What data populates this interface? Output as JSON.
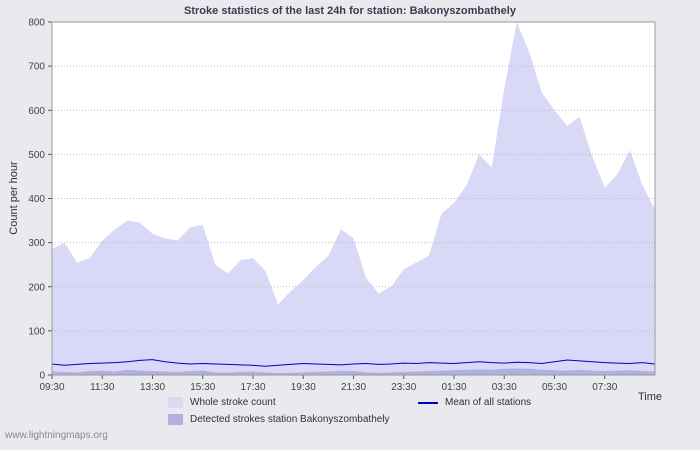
{
  "page": {
    "background": "#e9e9ee"
  },
  "footer": {
    "site": "www.lightningmaps.org"
  },
  "chart_data": {
    "type": "area",
    "title": "Stroke statistics of the last 24h for station: Bakonyszombathely",
    "xlabel": "Time",
    "ylabel": "Count per hour",
    "ylim": [
      0,
      800
    ],
    "y_ticks": [
      0,
      100,
      200,
      300,
      400,
      500,
      600,
      700,
      800
    ],
    "x_span": 24,
    "grid": "horizontal-dotted",
    "legend_position": "bottom",
    "x_ticks": [
      {
        "pos": 0,
        "label": "09:30"
      },
      {
        "pos": 2,
        "label": "11:30"
      },
      {
        "pos": 4,
        "label": "13:30"
      },
      {
        "pos": 6,
        "label": "15:30"
      },
      {
        "pos": 8,
        "label": "17:30"
      },
      {
        "pos": 10,
        "label": "19:30"
      },
      {
        "pos": 12,
        "label": "21:30"
      },
      {
        "pos": 14,
        "label": "23:30"
      },
      {
        "pos": 16,
        "label": "01:30"
      },
      {
        "pos": 18,
        "label": "03:30"
      },
      {
        "pos": 20,
        "label": "05:30"
      },
      {
        "pos": 22,
        "label": "07:30"
      }
    ],
    "colors": {
      "grid": "#bfbfbf",
      "border": "#999999",
      "axis": "#555555",
      "tick_text": "#444444",
      "plot_background": "#ffffff"
    },
    "x_hours": [
      0,
      0.5,
      1,
      1.5,
      2,
      2.5,
      3,
      3.5,
      4,
      4.5,
      5,
      5.5,
      6,
      6.5,
      7,
      7.5,
      8,
      8.5,
      9,
      9.5,
      10,
      10.5,
      11,
      11.5,
      12,
      12.5,
      13,
      13.5,
      14,
      14.5,
      15,
      15.5,
      16,
      16.5,
      17,
      17.5,
      18,
      18.5,
      19,
      19.5,
      20,
      20.5,
      21,
      21.5,
      22,
      22.5,
      23,
      23.5,
      24
    ],
    "series": [
      {
        "name": "Whole stroke count",
        "type": "area",
        "color": "#d9d9f7",
        "values": [
          285,
          300,
          255,
          265,
          305,
          330,
          350,
          345,
          320,
          310,
          305,
          335,
          340,
          250,
          230,
          260,
          265,
          235,
          160,
          190,
          215,
          245,
          270,
          330,
          310,
          220,
          185,
          200,
          240,
          255,
          270,
          365,
          390,
          430,
          500,
          470,
          650,
          800,
          730,
          640,
          600,
          565,
          585,
          495,
          425,
          455,
          510,
          430,
          375
        ]
      },
      {
        "name": "Detected strokes station Bakonyszombathely",
        "type": "area",
        "color": "#b1b1e1",
        "values": [
          8,
          7,
          6,
          9,
          10,
          8,
          12,
          10,
          9,
          8,
          7,
          9,
          10,
          6,
          5,
          7,
          8,
          6,
          4,
          5,
          6,
          7,
          8,
          10,
          9,
          6,
          5,
          6,
          7,
          8,
          9,
          10,
          11,
          12,
          13,
          12,
          14,
          15,
          14,
          12,
          11,
          10,
          12,
          10,
          9,
          10,
          11,
          9,
          8
        ]
      },
      {
        "name": "Mean of all stations",
        "type": "line",
        "color": "#0000bb",
        "values": [
          25,
          22,
          24,
          26,
          27,
          28,
          30,
          33,
          35,
          30,
          27,
          25,
          26,
          25,
          24,
          23,
          22,
          20,
          22,
          24,
          26,
          25,
          24,
          23,
          25,
          26,
          24,
          25,
          27,
          26,
          28,
          27,
          26,
          28,
          30,
          28,
          27,
          29,
          28,
          26,
          30,
          34,
          32,
          30,
          28,
          27,
          26,
          28,
          25
        ]
      }
    ]
  }
}
